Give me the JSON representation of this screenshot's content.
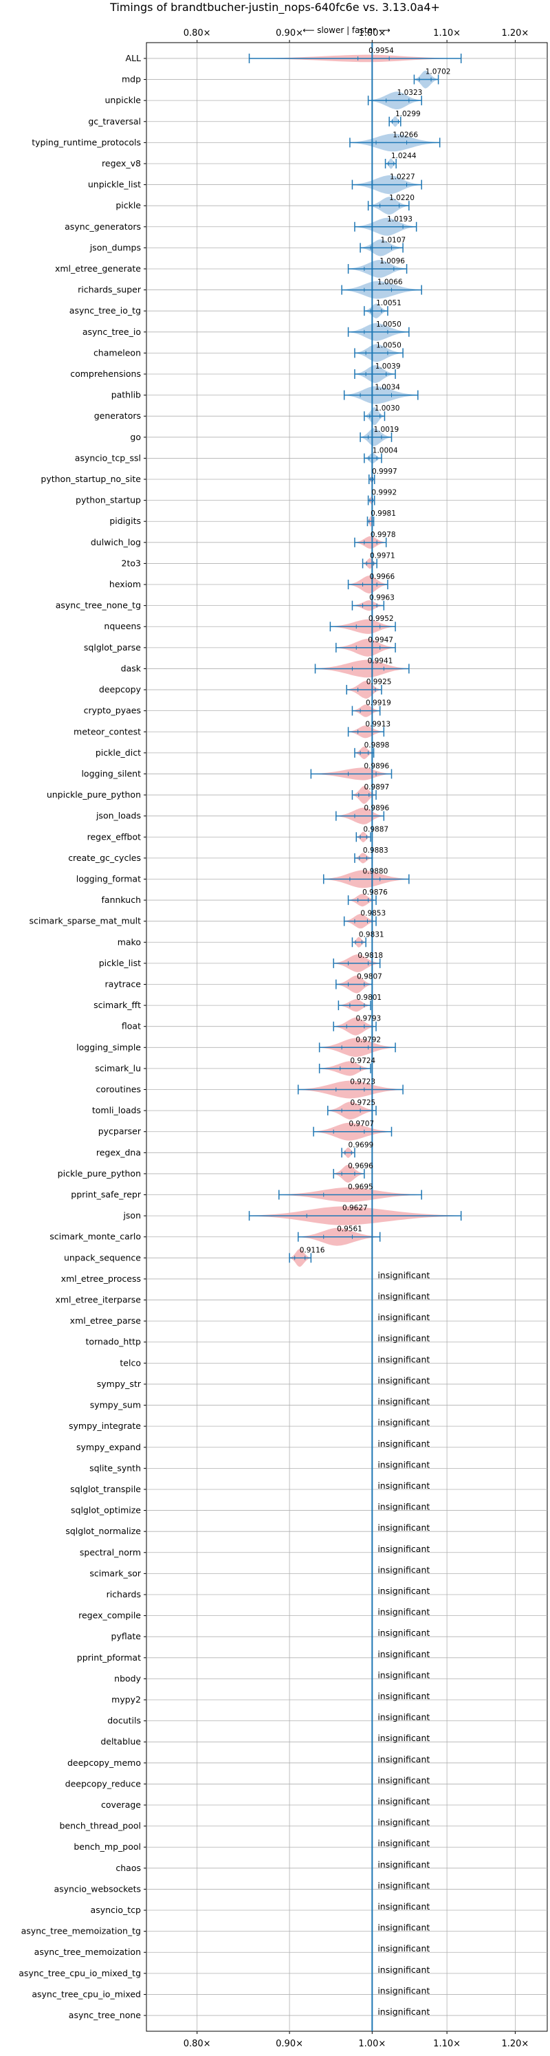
{
  "chart_data": {
    "type": "violin",
    "title": "Timings of brandtbucher-justin_nops-640fc6e vs. 3.13.0a4+",
    "direction_label": "⟵ slower | faster ⟶",
    "xlabel": "",
    "ylabel": "",
    "x_scale": "log",
    "xlim": [
      0.75,
      1.25
    ],
    "xticks": [
      0.8,
      0.9,
      1.0,
      1.1,
      1.2
    ],
    "xtick_labels": [
      "0.80×",
      "0.90×",
      "1.00×",
      "1.10×",
      "1.20×"
    ],
    "reference_line": 1.0,
    "grid": true,
    "colors": {
      "faster": "#9ec2e2",
      "slower": "#f2a6aa",
      "line": "#1f77b4",
      "grid": "#b0b0b0"
    },
    "insignificant_label": "insignificant",
    "benchmarks": [
      {
        "name": "ALL",
        "value": 0.9954,
        "label": "0.9954",
        "low": 0.855,
        "high": 1.12,
        "q1": 0.982,
        "q3": 1.022,
        "width": 0.35,
        "significant": true
      },
      {
        "name": "mdp",
        "value": 1.0702,
        "label": "1.0702",
        "low": 1.055,
        "high": 1.088,
        "q1": 1.062,
        "q3": 1.078,
        "width": 0.85,
        "significant": true
      },
      {
        "name": "unpickle",
        "value": 1.0323,
        "label": "1.0323",
        "low": 0.995,
        "high": 1.065,
        "q1": 1.018,
        "q3": 1.048,
        "width": 0.85,
        "significant": true
      },
      {
        "name": "gc_traversal",
        "value": 1.0299,
        "label": "1.0299",
        "low": 1.022,
        "high": 1.037,
        "q1": 1.026,
        "q3": 1.034,
        "width": 0.5,
        "significant": true
      },
      {
        "name": "typing_runtime_protocols",
        "value": 1.0266,
        "label": "1.0266",
        "low": 0.972,
        "high": 1.09,
        "q1": 1.005,
        "q3": 1.045,
        "width": 0.85,
        "significant": true
      },
      {
        "name": "regex_v8",
        "value": 1.0244,
        "label": "1.0244",
        "low": 1.017,
        "high": 1.031,
        "q1": 1.021,
        "q3": 1.028,
        "width": 0.5,
        "significant": true
      },
      {
        "name": "unpickle_list",
        "value": 1.0227,
        "label": "1.0227",
        "low": 0.975,
        "high": 1.065,
        "q1": 1.0,
        "q3": 1.045,
        "width": 0.9,
        "significant": true
      },
      {
        "name": "pickle",
        "value": 1.022,
        "label": "1.0220",
        "low": 0.995,
        "high": 1.048,
        "q1": 1.01,
        "q3": 1.035,
        "width": 0.85,
        "significant": true
      },
      {
        "name": "async_generators",
        "value": 1.0193,
        "label": "1.0193",
        "low": 0.978,
        "high": 1.058,
        "q1": 1.0,
        "q3": 1.04,
        "width": 0.85,
        "significant": true
      },
      {
        "name": "json_dumps",
        "value": 1.0107,
        "label": "1.0107",
        "low": 0.985,
        "high": 1.04,
        "q1": 0.998,
        "q3": 1.025,
        "width": 0.8,
        "significant": true
      },
      {
        "name": "xml_etree_generate",
        "value": 1.0096,
        "label": "1.0096",
        "low": 0.97,
        "high": 1.045,
        "q1": 0.99,
        "q3": 1.028,
        "width": 0.85,
        "significant": true
      },
      {
        "name": "richards_super",
        "value": 1.0066,
        "label": "1.0066",
        "low": 0.962,
        "high": 1.065,
        "q1": 0.99,
        "q3": 1.025,
        "width": 0.85,
        "significant": true
      },
      {
        "name": "async_tree_io_tg",
        "value": 1.0051,
        "label": "1.0051",
        "low": 0.99,
        "high": 1.02,
        "q1": 0.998,
        "q3": 1.012,
        "width": 0.7,
        "significant": true
      },
      {
        "name": "async_tree_io",
        "value": 1.005,
        "label": "1.0050",
        "low": 0.97,
        "high": 1.048,
        "q1": 0.99,
        "q3": 1.02,
        "width": 0.85,
        "significant": true
      },
      {
        "name": "chameleon",
        "value": 1.005,
        "label": "1.0050",
        "low": 0.978,
        "high": 1.04,
        "q1": 0.992,
        "q3": 1.02,
        "width": 0.85,
        "significant": true
      },
      {
        "name": "comprehensions",
        "value": 1.0039,
        "label": "1.0039",
        "low": 0.978,
        "high": 1.03,
        "q1": 0.992,
        "q3": 1.018,
        "width": 0.85,
        "significant": true
      },
      {
        "name": "pathlib",
        "value": 1.0034,
        "label": "1.0034",
        "low": 0.965,
        "high": 1.06,
        "q1": 0.985,
        "q3": 1.025,
        "width": 0.85,
        "significant": true
      },
      {
        "name": "generators",
        "value": 1.003,
        "label": "1.0030",
        "low": 0.99,
        "high": 1.016,
        "q1": 0.997,
        "q3": 1.01,
        "width": 0.85,
        "significant": true
      },
      {
        "name": "go",
        "value": 1.0019,
        "label": "1.0019",
        "low": 0.985,
        "high": 1.025,
        "q1": 0.995,
        "q3": 1.012,
        "width": 0.85,
        "significant": true
      },
      {
        "name": "asyncio_tcp_ssl",
        "value": 1.0004,
        "label": "1.0004",
        "low": 0.99,
        "high": 1.012,
        "q1": 0.996,
        "q3": 1.006,
        "width": 0.5,
        "significant": true
      },
      {
        "name": "python_startup_no_site",
        "value": 0.9997,
        "label": "0.9997",
        "low": 0.996,
        "high": 1.003,
        "q1": 0.998,
        "q3": 1.001,
        "width": 0.4,
        "significant": true
      },
      {
        "name": "python_startup",
        "value": 0.9992,
        "label": "0.9992",
        "low": 0.995,
        "high": 1.003,
        "q1": 0.997,
        "q3": 1.001,
        "width": 0.4,
        "significant": true
      },
      {
        "name": "pidigits",
        "value": 0.9981,
        "label": "0.9981",
        "low": 0.994,
        "high": 1.002,
        "q1": 0.996,
        "q3": 1.0,
        "width": 0.5,
        "significant": true
      },
      {
        "name": "dulwich_log",
        "value": 0.9978,
        "label": "0.9978",
        "low": 0.978,
        "high": 1.018,
        "q1": 0.99,
        "q3": 1.006,
        "width": 0.6,
        "significant": true
      },
      {
        "name": "2to3",
        "value": 0.9971,
        "label": "0.9971",
        "low": 0.988,
        "high": 1.006,
        "q1": 0.993,
        "q3": 1.002,
        "width": 0.5,
        "significant": true
      },
      {
        "name": "hexiom",
        "value": 0.9966,
        "label": "0.9966",
        "low": 0.97,
        "high": 1.02,
        "q1": 0.988,
        "q3": 1.006,
        "width": 0.85,
        "significant": true
      },
      {
        "name": "async_tree_none_tg",
        "value": 0.9963,
        "label": "0.9963",
        "low": 0.975,
        "high": 1.015,
        "q1": 0.988,
        "q3": 1.006,
        "width": 0.5,
        "significant": true
      },
      {
        "name": "nqueens",
        "value": 0.9952,
        "label": "0.9952",
        "low": 0.948,
        "high": 1.03,
        "q1": 0.98,
        "q3": 1.01,
        "width": 0.7,
        "significant": true
      },
      {
        "name": "sqlglot_parse",
        "value": 0.9947,
        "label": "0.9947",
        "low": 0.955,
        "high": 1.03,
        "q1": 0.98,
        "q3": 1.01,
        "width": 0.85,
        "significant": true
      },
      {
        "name": "dask",
        "value": 0.9941,
        "label": "0.9941",
        "low": 0.93,
        "high": 1.048,
        "q1": 0.975,
        "q3": 1.015,
        "width": 0.85,
        "significant": true
      },
      {
        "name": "deepcopy",
        "value": 0.9925,
        "label": "0.9925",
        "low": 0.968,
        "high": 1.012,
        "q1": 0.982,
        "q3": 1.004,
        "width": 0.85,
        "significant": true
      },
      {
        "name": "crypto_pyaes",
        "value": 0.9919,
        "label": "0.9919",
        "low": 0.975,
        "high": 1.01,
        "q1": 0.985,
        "q3": 1.0,
        "width": 0.6,
        "significant": true
      },
      {
        "name": "meteor_contest",
        "value": 0.9913,
        "label": "0.9913",
        "low": 0.97,
        "high": 1.015,
        "q1": 0.982,
        "q3": 1.0,
        "width": 0.6,
        "significant": true
      },
      {
        "name": "pickle_dict",
        "value": 0.9898,
        "label": "0.9898",
        "low": 0.978,
        "high": 1.002,
        "q1": 0.985,
        "q3": 0.995,
        "width": 0.6,
        "significant": true
      },
      {
        "name": "logging_silent",
        "value": 0.9896,
        "label": "0.9896",
        "low": 0.925,
        "high": 1.025,
        "q1": 0.97,
        "q3": 1.005,
        "width": 0.6,
        "significant": true
      },
      {
        "name": "unpickle_pure_python",
        "value": 0.9897,
        "label": "0.9897",
        "low": 0.975,
        "high": 1.005,
        "q1": 0.983,
        "q3": 0.996,
        "width": 0.85,
        "significant": true
      },
      {
        "name": "json_loads",
        "value": 0.9896,
        "label": "0.9896",
        "low": 0.955,
        "high": 1.015,
        "q1": 0.978,
        "q3": 1.0,
        "width": 0.8,
        "significant": true
      },
      {
        "name": "regex_effbot",
        "value": 0.9887,
        "label": "0.9887",
        "low": 0.98,
        "high": 0.998,
        "q1": 0.985,
        "q3": 0.993,
        "width": 0.5,
        "significant": true
      },
      {
        "name": "create_gc_cycles",
        "value": 0.9883,
        "label": "0.9883",
        "low": 0.978,
        "high": 1.0,
        "q1": 0.984,
        "q3": 0.993,
        "width": 0.5,
        "significant": true
      },
      {
        "name": "logging_format",
        "value": 0.988,
        "label": "0.9880",
        "low": 0.94,
        "high": 1.048,
        "q1": 0.972,
        "q3": 1.01,
        "width": 0.85,
        "significant": true
      },
      {
        "name": "fannkuch",
        "value": 0.9876,
        "label": "0.9876",
        "low": 0.97,
        "high": 1.005,
        "q1": 0.982,
        "q3": 0.995,
        "width": 0.6,
        "significant": true
      },
      {
        "name": "scimark_sparse_mat_mult",
        "value": 0.9853,
        "label": "0.9853",
        "low": 0.965,
        "high": 1.005,
        "q1": 0.978,
        "q3": 0.994,
        "width": 0.7,
        "significant": true
      },
      {
        "name": "mako",
        "value": 0.9831,
        "label": "0.9831",
        "low": 0.975,
        "high": 0.992,
        "q1": 0.979,
        "q3": 0.987,
        "width": 0.5,
        "significant": true
      },
      {
        "name": "pickle_list",
        "value": 0.9818,
        "label": "0.9818",
        "low": 0.952,
        "high": 1.01,
        "q1": 0.97,
        "q3": 0.995,
        "width": 0.85,
        "significant": true
      },
      {
        "name": "raytrace",
        "value": 0.9807,
        "label": "0.9807",
        "low": 0.955,
        "high": 1.0,
        "q1": 0.97,
        "q3": 0.99,
        "width": 0.85,
        "significant": true
      },
      {
        "name": "scimark_fft",
        "value": 0.9801,
        "label": "0.9801",
        "low": 0.958,
        "high": 0.998,
        "q1": 0.972,
        "q3": 0.99,
        "width": 0.6,
        "significant": true
      },
      {
        "name": "float",
        "value": 0.9793,
        "label": "0.9793",
        "low": 0.952,
        "high": 1.005,
        "q1": 0.968,
        "q3": 0.99,
        "width": 0.85,
        "significant": true
      },
      {
        "name": "logging_simple",
        "value": 0.9792,
        "label": "0.9792",
        "low": 0.935,
        "high": 1.03,
        "q1": 0.962,
        "q3": 0.995,
        "width": 0.9,
        "significant": true
      },
      {
        "name": "scimark_lu",
        "value": 0.9724,
        "label": "0.9724",
        "low": 0.935,
        "high": 0.998,
        "q1": 0.96,
        "q3": 0.985,
        "width": 0.7,
        "significant": true
      },
      {
        "name": "coroutines",
        "value": 0.9723,
        "label": "0.9723",
        "low": 0.91,
        "high": 1.04,
        "q1": 0.955,
        "q3": 0.99,
        "width": 0.85,
        "significant": true
      },
      {
        "name": "tomli_loads",
        "value": 0.9725,
        "label": "0.9725",
        "low": 0.945,
        "high": 1.005,
        "q1": 0.962,
        "q3": 0.985,
        "width": 0.85,
        "significant": true
      },
      {
        "name": "pycparser",
        "value": 0.9707,
        "label": "0.9707",
        "low": 0.928,
        "high": 1.025,
        "q1": 0.952,
        "q3": 0.99,
        "width": 0.85,
        "significant": true
      },
      {
        "name": "regex_dna",
        "value": 0.9699,
        "label": "0.9699",
        "low": 0.962,
        "high": 0.978,
        "q1": 0.966,
        "q3": 0.974,
        "width": 0.5,
        "significant": true
      },
      {
        "name": "pickle_pure_python",
        "value": 0.9696,
        "label": "0.9696",
        "low": 0.952,
        "high": 0.99,
        "q1": 0.962,
        "q3": 0.978,
        "width": 0.85,
        "significant": true
      },
      {
        "name": "pprint_safe_repr",
        "value": 0.9695,
        "label": "0.9695",
        "low": 0.888,
        "high": 1.065,
        "q1": 0.94,
        "q3": 1.0,
        "width": 0.7,
        "significant": true
      },
      {
        "name": "json",
        "value": 0.9627,
        "label": "0.9627",
        "low": 0.855,
        "high": 1.12,
        "q1": 0.92,
        "q3": 1.0,
        "width": 0.9,
        "significant": true
      },
      {
        "name": "scimark_monte_carlo",
        "value": 0.9561,
        "label": "0.9561",
        "low": 0.91,
        "high": 1.01,
        "q1": 0.94,
        "q3": 0.975,
        "width": 0.85,
        "significant": true
      },
      {
        "name": "unpack_sequence",
        "value": 0.9116,
        "label": "0.9116",
        "low": 0.9,
        "high": 0.925,
        "q1": 0.906,
        "q3": 0.918,
        "width": 0.85,
        "significant": true
      },
      {
        "name": "xml_etree_process",
        "significant": false
      },
      {
        "name": "xml_etree_iterparse",
        "significant": false
      },
      {
        "name": "xml_etree_parse",
        "significant": false
      },
      {
        "name": "tornado_http",
        "significant": false
      },
      {
        "name": "telco",
        "significant": false
      },
      {
        "name": "sympy_str",
        "significant": false
      },
      {
        "name": "sympy_sum",
        "significant": false
      },
      {
        "name": "sympy_integrate",
        "significant": false
      },
      {
        "name": "sympy_expand",
        "significant": false
      },
      {
        "name": "sqlite_synth",
        "significant": false
      },
      {
        "name": "sqlglot_transpile",
        "significant": false
      },
      {
        "name": "sqlglot_optimize",
        "significant": false
      },
      {
        "name": "sqlglot_normalize",
        "significant": false
      },
      {
        "name": "spectral_norm",
        "significant": false
      },
      {
        "name": "scimark_sor",
        "significant": false
      },
      {
        "name": "richards",
        "significant": false
      },
      {
        "name": "regex_compile",
        "significant": false
      },
      {
        "name": "pyflate",
        "significant": false
      },
      {
        "name": "pprint_pformat",
        "significant": false
      },
      {
        "name": "nbody",
        "significant": false
      },
      {
        "name": "mypy2",
        "significant": false
      },
      {
        "name": "docutils",
        "significant": false
      },
      {
        "name": "deltablue",
        "significant": false
      },
      {
        "name": "deepcopy_memo",
        "significant": false
      },
      {
        "name": "deepcopy_reduce",
        "significant": false
      },
      {
        "name": "coverage",
        "significant": false
      },
      {
        "name": "bench_thread_pool",
        "significant": false
      },
      {
        "name": "bench_mp_pool",
        "significant": false
      },
      {
        "name": "chaos",
        "significant": false
      },
      {
        "name": "asyncio_websockets",
        "significant": false
      },
      {
        "name": "asyncio_tcp",
        "significant": false
      },
      {
        "name": "async_tree_memoization_tg",
        "significant": false
      },
      {
        "name": "async_tree_memoization",
        "significant": false
      },
      {
        "name": "async_tree_cpu_io_mixed_tg",
        "significant": false
      },
      {
        "name": "async_tree_cpu_io_mixed",
        "significant": false
      },
      {
        "name": "async_tree_none",
        "significant": false
      }
    ]
  }
}
